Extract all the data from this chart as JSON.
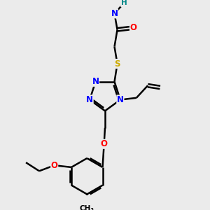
{
  "bg_color": "#ebebeb",
  "bond_color": "#000000",
  "bond_width": 1.8,
  "atom_colors": {
    "N": "#0000ff",
    "O": "#ff0000",
    "S": "#ccaa00",
    "H": "#008888",
    "C": "#000000"
  },
  "font_size": 8.5,
  "fig_size": [
    3.0,
    3.0
  ],
  "dpi": 100,
  "xlim": [
    0,
    10
  ],
  "ylim": [
    0,
    10
  ]
}
